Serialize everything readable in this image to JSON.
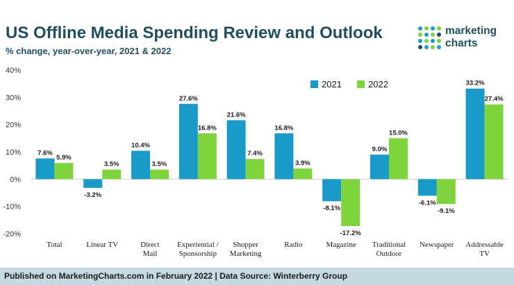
{
  "header": {
    "title": "US Offline Media Spending Review and Outlook",
    "subtitle": "% change, year-over-year, 2021 & 2022"
  },
  "logo": {
    "line1": "marketing",
    "line2": "charts",
    "dot_colors": [
      "#1a9ac9",
      "#7fd33c",
      "#1f4e5f"
    ]
  },
  "footer": {
    "text": "Published on MarketingCharts.com in February 2022 | Data Source: Winterberry Group"
  },
  "colors": {
    "series_2021": "#1a9ac9",
    "series_2022": "#7fd33c",
    "title": "#1f4e5f",
    "footer_bg": "#c5d9e3"
  },
  "chart_data": {
    "type": "bar",
    "title": "US Offline Media Spending Review and Outlook",
    "subtitle": "% change, year-over-year, 2021 & 2022",
    "categories": [
      [
        "Total"
      ],
      [
        "Linear TV"
      ],
      [
        "Direct",
        "Mail"
      ],
      [
        "Experiential /",
        "Sponsorship"
      ],
      [
        "Shopper",
        "Marketing"
      ],
      [
        "Radio"
      ],
      [
        "Magazine"
      ],
      [
        "Traditional",
        "Outdoor"
      ],
      [
        "Newspaper"
      ],
      [
        "Addressable",
        "TV"
      ]
    ],
    "series": [
      {
        "name": "2021",
        "color": "#1a9ac9",
        "values": [
          7.6,
          -3.2,
          10.4,
          27.6,
          21.6,
          16.8,
          -8.1,
          9.0,
          -6.1,
          33.2
        ]
      },
      {
        "name": "2022",
        "color": "#7fd33c",
        "values": [
          5.9,
          3.5,
          3.5,
          16.8,
          7.4,
          3.9,
          -17.2,
          15.0,
          -9.1,
          27.4
        ]
      }
    ],
    "data_labels_2021": [
      "7.6%",
      "-3.2%",
      "10.4%",
      "27.6%",
      "21.6%",
      "16.8%",
      "-8.1%",
      "9.0%",
      "-6.1%",
      "33.2%"
    ],
    "data_labels_2022": [
      "5.9%",
      "3.5%",
      "3.5%",
      "16.8%",
      "7.4%",
      "3.9%",
      "-17.2%",
      "15.0%",
      "-9.1%",
      "27.4%"
    ],
    "yticks": [
      40,
      30,
      20,
      10,
      0,
      -10,
      -20
    ],
    "ytick_labels": [
      "40%",
      "30%",
      "20%",
      "10%",
      "0%",
      "-10%",
      "-20%"
    ],
    "ylim": [
      -20,
      40
    ],
    "xlabel": "",
    "ylabel": "",
    "legend_position": "top-right",
    "grid": false
  }
}
